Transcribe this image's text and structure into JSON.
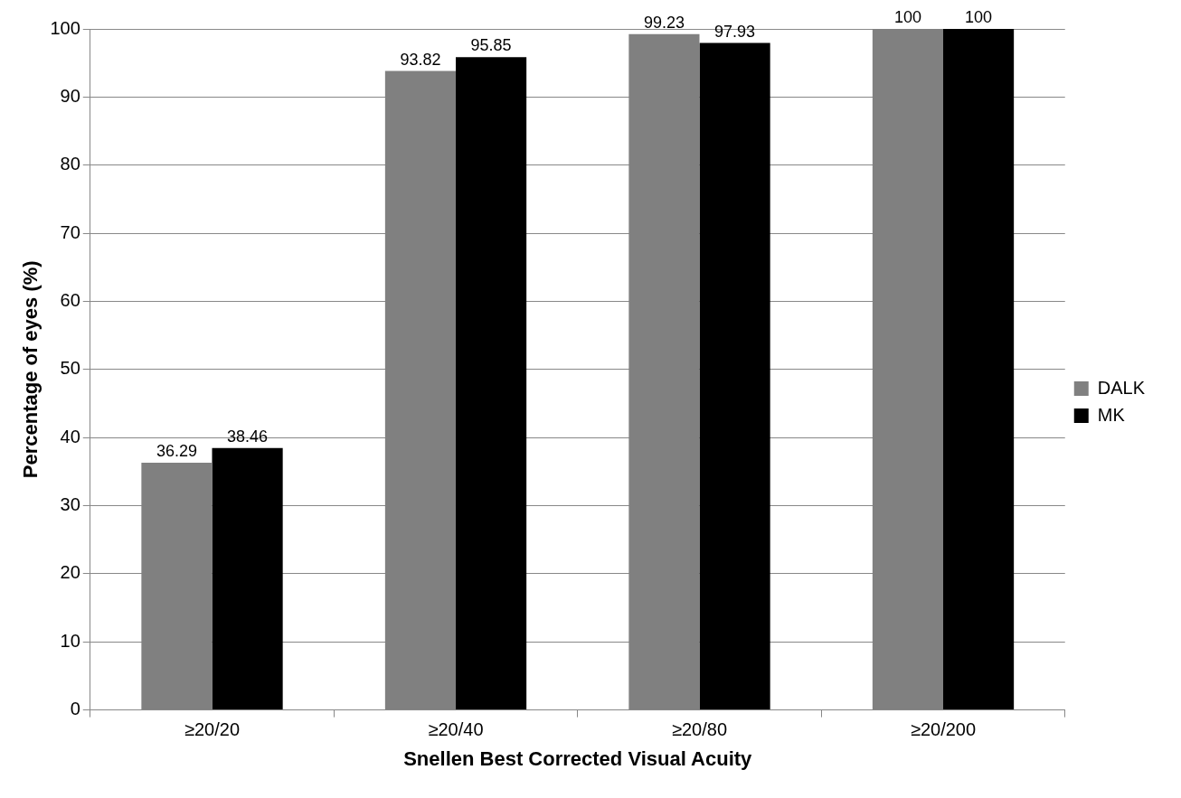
{
  "chart_data": {
    "type": "bar",
    "xlabel": "Snellen Best Corrected Visual Acuity",
    "ylabel": "Percentage of eyes (%)",
    "categories": [
      "≥20/20",
      "≥20/40",
      "≥20/80",
      "≥20/200"
    ],
    "series": [
      {
        "name": "DALK",
        "color": "#808080",
        "values": [
          36.29,
          93.82,
          99.23,
          100
        ]
      },
      {
        "name": "MK",
        "color": "#000000",
        "values": [
          38.46,
          95.85,
          97.93,
          100
        ]
      }
    ],
    "ylim": [
      0,
      100
    ],
    "yticks": [
      0,
      10,
      20,
      30,
      40,
      50,
      60,
      70,
      80,
      90,
      100
    ],
    "grid": "y",
    "legend": "right",
    "data_labels": true
  }
}
